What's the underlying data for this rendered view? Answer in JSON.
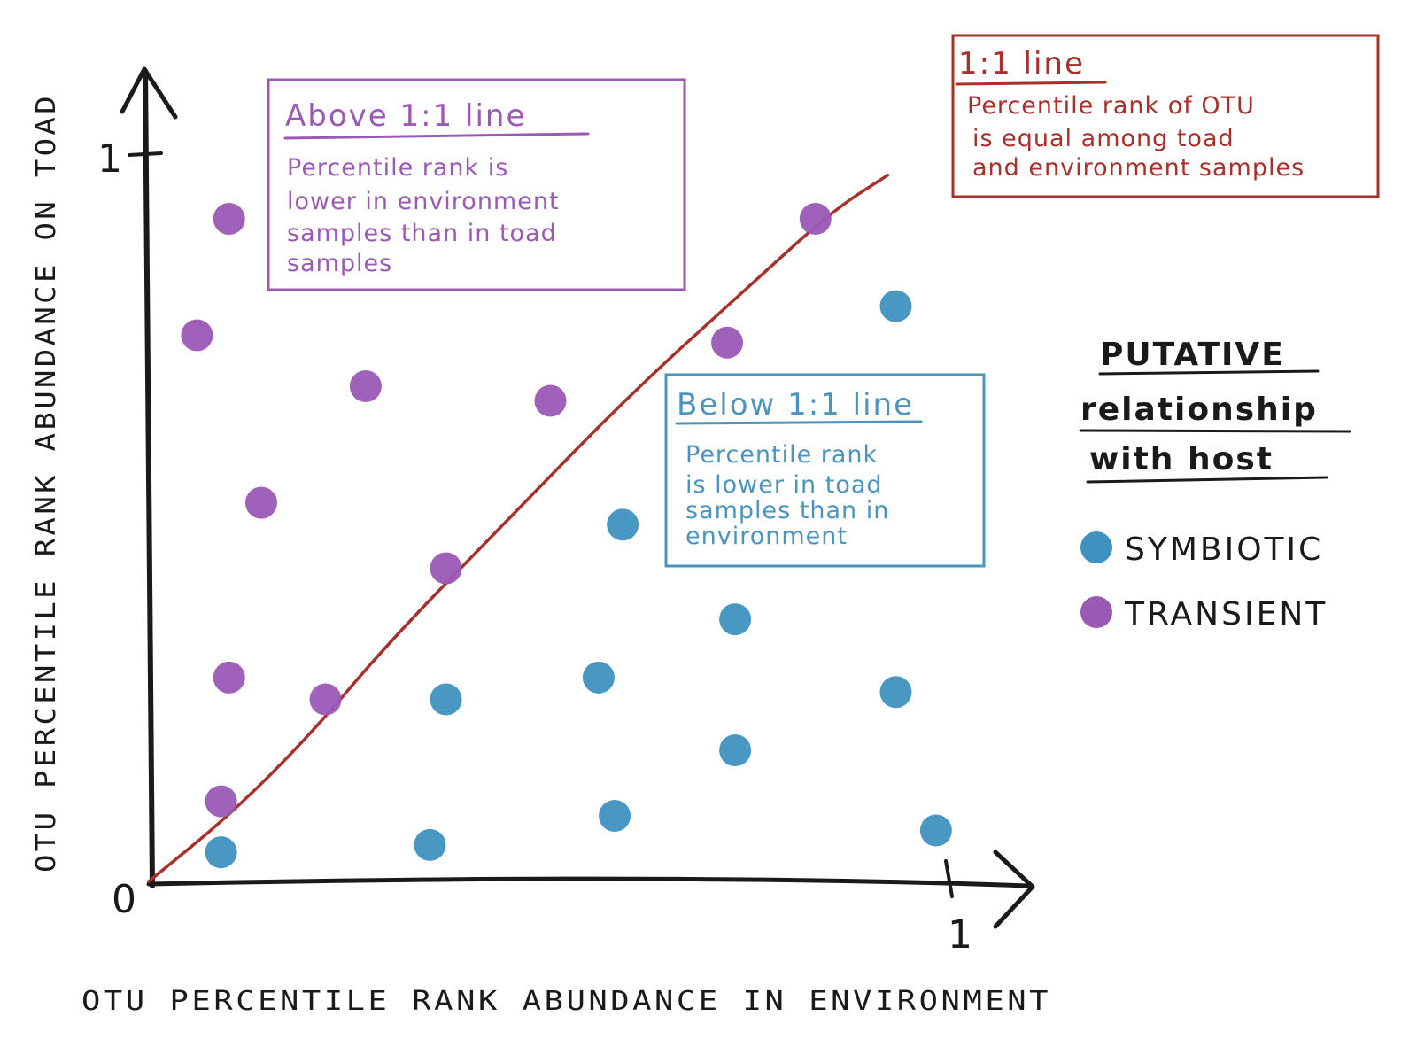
{
  "chart_data": {
    "type": "scatter",
    "xlabel": "OTU PERCENTILE RANK ABUNDANCE IN ENVIRONMENT",
    "ylabel": "OTU PERCENTILE RANK ABUNDANCE ON TOAD",
    "xlim": [
      0,
      1
    ],
    "ylim": [
      0,
      1
    ],
    "origin_label": "0",
    "x_tick_label": "1",
    "y_tick_label": "1",
    "grid": false,
    "legend_placement": "right",
    "legend": {
      "title_lines": [
        "PUTATIVE",
        "relationship",
        "with host"
      ],
      "entries": [
        {
          "label": "SYMBIOTIC",
          "color": "#3f92c0"
        },
        {
          "label": "TRANSIENT",
          "color": "#9b59b6"
        }
      ]
    },
    "reference_line": {
      "name": "1:1 line",
      "color": "#a8302a",
      "points": [
        [
          0.0,
          0.0
        ],
        [
          0.1,
          0.09
        ],
        [
          0.2,
          0.2
        ],
        [
          0.3,
          0.33
        ],
        [
          0.45,
          0.5
        ],
        [
          0.6,
          0.67
        ],
        [
          0.75,
          0.82
        ],
        [
          0.85,
          0.92
        ],
        [
          0.92,
          0.97
        ]
      ]
    },
    "series": [
      {
        "name": "SYMBIOTIC",
        "color": "#3f92c0",
        "points": [
          {
            "x": 0.09,
            "y": 0.04
          },
          {
            "x": 0.35,
            "y": 0.05
          },
          {
            "x": 0.58,
            "y": 0.09
          },
          {
            "x": 0.98,
            "y": 0.07
          },
          {
            "x": 0.37,
            "y": 0.25
          },
          {
            "x": 0.56,
            "y": 0.28
          },
          {
            "x": 0.73,
            "y": 0.18
          },
          {
            "x": 0.93,
            "y": 0.26
          },
          {
            "x": 0.73,
            "y": 0.36
          },
          {
            "x": 0.59,
            "y": 0.49
          },
          {
            "x": 0.93,
            "y": 0.79
          }
        ]
      },
      {
        "name": "TRANSIENT",
        "color": "#9b59b6",
        "points": [
          {
            "x": 0.1,
            "y": 0.91
          },
          {
            "x": 0.06,
            "y": 0.75
          },
          {
            "x": 0.27,
            "y": 0.68
          },
          {
            "x": 0.5,
            "y": 0.66
          },
          {
            "x": 0.14,
            "y": 0.52
          },
          {
            "x": 0.37,
            "y": 0.43
          },
          {
            "x": 0.1,
            "y": 0.28
          },
          {
            "x": 0.22,
            "y": 0.25
          },
          {
            "x": 0.09,
            "y": 0.11
          },
          {
            "x": 0.72,
            "y": 0.74
          },
          {
            "x": 0.83,
            "y": 0.91
          }
        ]
      }
    ],
    "annotations": [
      {
        "title": "Above 1:1 line",
        "color": "#9b59b6",
        "lines": [
          "Percentile rank is",
          "lower in environment",
          "samples than in toad",
          "samples"
        ]
      },
      {
        "title": "Below 1:1 line",
        "color": "#4b94bd",
        "lines": [
          "Percentile rank",
          "is lower in toad",
          "samples than in",
          "environment"
        ]
      },
      {
        "title": "1:1 line",
        "color": "#a8302a",
        "lines": [
          "Percentile rank of OTU",
          "is equal among toad",
          "and environment samples"
        ]
      }
    ]
  }
}
